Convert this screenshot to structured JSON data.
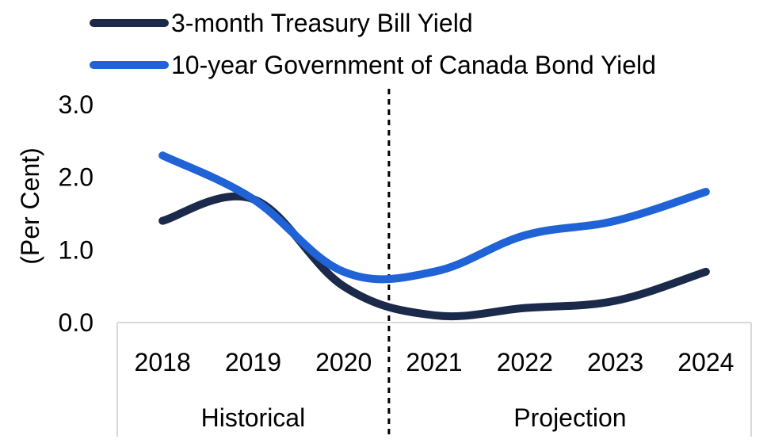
{
  "chart_data": {
    "type": "line",
    "categories": [
      "2018",
      "2019",
      "2020",
      "2021",
      "2022",
      "2023",
      "2024"
    ],
    "series": [
      {
        "name": "3-month Treasury Bill Yield",
        "color": "#1b2a4a",
        "values": [
          1.4,
          1.7,
          0.5,
          0.1,
          0.2,
          0.3,
          0.7
        ]
      },
      {
        "name": "10-year Government of Canada Bond Yield",
        "color": "#1f63d6",
        "values": [
          2.3,
          1.7,
          0.7,
          0.7,
          1.2,
          1.4,
          1.8
        ]
      }
    ],
    "ylabel": "(Per Cent)",
    "yticks": [
      "0.0",
      "1.0",
      "2.0",
      "3.0"
    ],
    "ylim": [
      0,
      3
    ],
    "groups": [
      {
        "label": "Historical",
        "categories": [
          "2018",
          "2019",
          "2020"
        ]
      },
      {
        "label": "Projection",
        "categories": [
          "2021",
          "2022",
          "2023",
          "2024"
        ]
      }
    ],
    "divider_between": [
      "2020",
      "2021"
    ],
    "legend_position": "top",
    "grid": false
  }
}
